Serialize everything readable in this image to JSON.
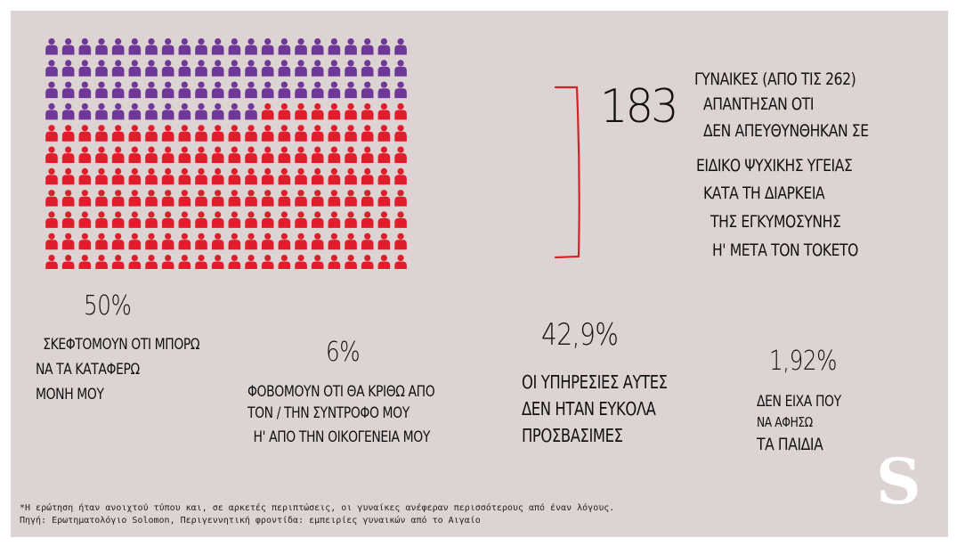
{
  "colors": {
    "background": "#ddd3d3",
    "purple": "#6f3797",
    "red": "#e01e2b",
    "bracket": "#d1232a"
  },
  "icon_grid": {
    "icon": "person-icon",
    "columns": 22,
    "purple_count": 79,
    "red_count": 183,
    "total": 262
  },
  "headline": {
    "number": "183",
    "lines": [
      "ΓΥΝΑΙΚΕΣ (ΑΠΟ ΤΙΣ 262)",
      "ΑΠΑΝΤΗΣΑΝ ΟΤΙ",
      "ΔΕΝ ΑΠΕΥΘΥΝΘΗΚΑΝ ΣΕ",
      "ΕΙΔΙΚΟ ΨΥΧΙΚΗΣ ΥΓΕΙΑΣ",
      "ΚΑΤΑ ΤΗ ΔΙΑΡΚΕΙΑ",
      "ΤΗΣ ΕΓΚΥΜΟΣΥΝΗΣ",
      "Η' ΜΕΤΑ ΤΟΝ ΤΟΚΕΤΟ"
    ]
  },
  "stats": [
    {
      "percent": "50%",
      "lines": [
        "ΣΚΕΦΤΟΜΟΥΝ ΟΤΙ ΜΠΟΡΩ",
        "ΝΑ ΤΑ ΚΑΤΑΦΕΡΩ",
        "ΜΟΝΗ ΜΟΥ"
      ]
    },
    {
      "percent": "6%",
      "lines": [
        "ΦΟΒΟΜΟΥΝ ΟΤΙ ΘΑ ΚΡΙΘΩ ΑΠΟ",
        "ΤΟΝ / ΤΗΝ ΣΥΝΤΡΟΦΟ ΜΟΥ",
        "Η' ΑΠΟ ΤΗΝ ΟΙΚΟΓΕΝΕΙΑ ΜΟΥ"
      ]
    },
    {
      "percent": "42,9%",
      "lines": [
        "ΟΙ ΥΠΗΡΕΣΙΕΣ ΑΥΤΕΣ",
        "ΔΕΝ ΗΤΑΝ ΕΥΚΟΛΑ",
        "ΠΡΟΣΒΑΣΙΜΕΣ"
      ]
    },
    {
      "percent": "1,92%",
      "lines": [
        "ΔΕΝ ΕΙΧΑ ΠΟΥ",
        "ΝΑ ΑΦΗΣΩ",
        "ΤΑ ΠΑΙΔΙΑ"
      ]
    }
  ],
  "footnote": {
    "line1": "*Η ερώτηση ήταν ανοιχτού τύπου και, σε αρκετές περιπτώσεις, οι γυναίκες ανέφεραν περισσότερους από έναν λόγους.",
    "line2": "Πηγή: Ερωτηματολόγιο Solomon, Περιγεννητική φροντίδα: εμπειρίες γυναικών από το Αιγαίο"
  },
  "logo": {
    "letter": "S"
  }
}
